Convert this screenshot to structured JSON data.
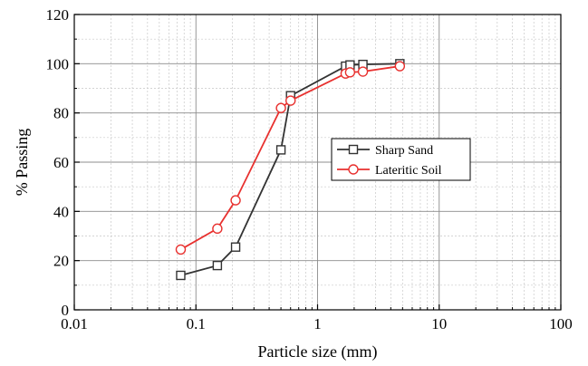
{
  "chart_data": {
    "type": "line",
    "xscale": "log",
    "xlim": [
      0.01,
      100
    ],
    "ylim": [
      0,
      120
    ],
    "xlabel": "Particle size (mm)",
    "ylabel": "% Passing",
    "xticks": [
      0.01,
      0.1,
      1,
      10,
      100
    ],
    "xtick_labels": [
      "0.01",
      "0.1",
      "1",
      "10",
      "100"
    ],
    "yticks": [
      0,
      20,
      40,
      60,
      80,
      100,
      120
    ],
    "ytick_labels": [
      "0",
      "20",
      "40",
      "60",
      "80",
      "100",
      "120"
    ],
    "grid": true,
    "legend_position": "center-right",
    "series": [
      {
        "name": "Sharp Sand",
        "color": "#333333",
        "marker": "square",
        "x": [
          0.075,
          0.15,
          0.212,
          0.5,
          0.6,
          1.7,
          1.85,
          2.36,
          4.75
        ],
        "y": [
          14,
          18,
          25.5,
          65,
          87,
          99,
          99.5,
          99.7,
          100
        ]
      },
      {
        "name": "Lateritic Soil",
        "color": "#e8312f",
        "marker": "circle",
        "x": [
          0.075,
          0.15,
          0.212,
          0.5,
          0.6,
          1.7,
          1.85,
          2.36,
          4.75
        ],
        "y": [
          24.5,
          33,
          44.5,
          82,
          85,
          96,
          96.5,
          96.8,
          99
        ]
      }
    ]
  }
}
